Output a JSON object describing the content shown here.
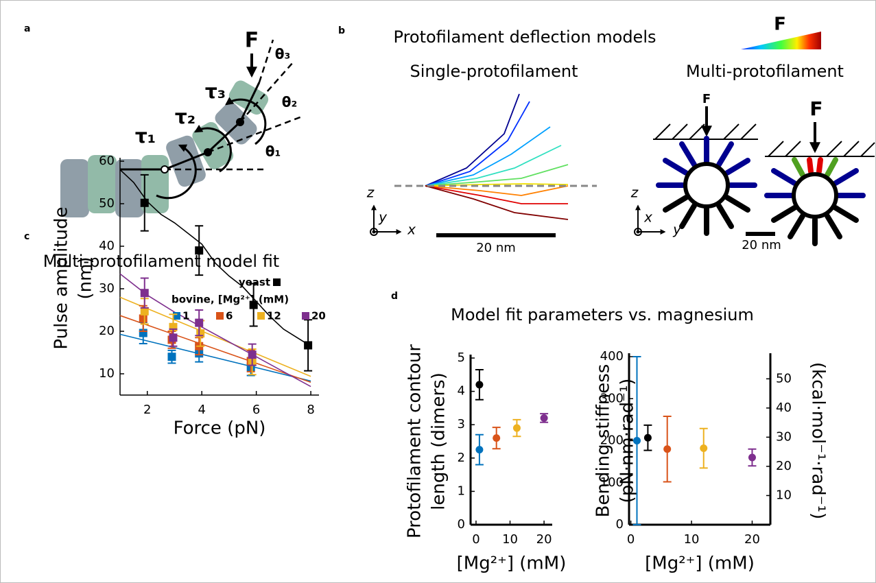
{
  "panel_labels": [
    "a",
    "b",
    "c",
    "d"
  ],
  "panel_a": {
    "force": "F",
    "angles": [
      "θ₃",
      "θ₂",
      "θ₁"
    ],
    "torques": [
      "τ₁",
      "τ₂",
      "τ₃"
    ]
  },
  "panel_b": {
    "title": "Protofilament deflection models",
    "colorbar_label": "F",
    "single_title": "Single-protofilament",
    "multi_title": "Multi-protofilament",
    "single_axes": [
      "z",
      "y",
      "x"
    ],
    "multi_axes": [
      "z",
      "x",
      "y"
    ],
    "single_scale": "20 nm",
    "multi_scale": "20 nm",
    "multi_forces": [
      "F",
      "F"
    ]
  },
  "panel_d_title": "Model fit parameters vs. magnesium",
  "chart_data": [
    {
      "type": "scatter",
      "title": "Multi-protofilament model fit",
      "x_label": "Force (pN)",
      "y_label": [
        "Pulse amplitude",
        "(nm)"
      ],
      "legend_title": "bovine, [Mg²⁺] (mM)",
      "xlim": [
        1,
        8.3
      ],
      "xticks": [
        2,
        4,
        6,
        8
      ],
      "ylim": [
        5,
        60
      ],
      "yticks": [
        10,
        20,
        30,
        40,
        50,
        60
      ],
      "series": [
        {
          "name": "yeast",
          "color": "#000000",
          "x": [
            1.9,
            3.9,
            5.9,
            7.9
          ],
          "values": [
            50.2,
            39,
            26.2,
            16.7
          ],
          "errors": [
            6.6,
            5.8,
            5,
            6
          ],
          "fit_x": [
            1,
            1.5,
            2,
            2.5,
            3,
            3.5,
            4,
            4.5,
            5,
            5.5,
            6,
            6.5,
            7,
            7.5,
            8
          ],
          "fit_values": [
            58,
            55,
            50.5,
            47.5,
            45.5,
            43,
            40.5,
            36,
            33,
            30.5,
            27,
            23.5,
            20.5,
            18.5,
            16.5
          ]
        },
        {
          "name": "1",
          "color": "#0072bd",
          "x": [
            1.85,
            2.9,
            3.9,
            5.8
          ],
          "values": [
            19.6,
            14,
            14.8,
            11.6
          ],
          "errors": [
            2.5,
            1.5,
            2,
            2
          ],
          "fit_x": [
            1,
            8
          ],
          "fit_values": [
            19.3,
            8.3
          ]
        },
        {
          "name": "6",
          "color": "#d95319",
          "x": [
            1.85,
            2.9,
            3.9,
            5.8
          ],
          "values": [
            23,
            18,
            16.5,
            13
          ],
          "errors": [
            3,
            2,
            2,
            2.5
          ],
          "fit_x": [
            1,
            8
          ],
          "fit_values": [
            23.7,
            8
          ]
        },
        {
          "name": "12",
          "color": "#edb120",
          "x": [
            1.9,
            2.95,
            3.95,
            5.85
          ],
          "values": [
            24.7,
            21,
            19.5,
            12.8
          ],
          "errors": [
            3,
            3,
            3,
            3
          ],
          "fit_x": [
            1,
            8
          ],
          "fit_values": [
            28,
            9.4
          ]
        },
        {
          "name": "20",
          "color": "#7e2f8e",
          "x": [
            1.9,
            2.95,
            3.9,
            5.85
          ],
          "values": [
            29,
            18.5,
            22,
            14.5
          ],
          "errors": [
            3.5,
            2,
            3,
            2.5
          ],
          "fit_x": [
            1,
            2,
            3,
            4,
            5,
            6,
            7,
            8
          ],
          "fit_values": [
            33.5,
            28.5,
            24.5,
            21,
            17.5,
            14,
            10.5,
            7
          ]
        }
      ]
    },
    {
      "type": "errorbar",
      "x_label": "[Mg²⁺] (mM)",
      "y_label": [
        "Protofilament contour",
        "length (dimers)"
      ],
      "xlim": [
        -1.6,
        22.4
      ],
      "xticks": [
        0,
        10,
        20
      ],
      "ylim": [
        0,
        5
      ],
      "yticks": [
        0,
        1,
        2,
        3,
        4,
        5
      ],
      "points": {
        "x": [
          1,
          1,
          6,
          12,
          20
        ],
        "values": [
          4.2,
          2.25,
          2.6,
          2.9,
          3.2
        ],
        "errors": [
          0.45,
          0.45,
          0.32,
          0.25,
          0.13
        ],
        "colors": [
          "#000000",
          "#0072bd",
          "#d95319",
          "#edb120",
          "#7e2f8e"
        ]
      }
    },
    {
      "type": "errorbar",
      "x_label": "[Mg²⁺] (mM)",
      "y_label": [
        "Bending stiffness",
        "(pN·nm·rad⁻¹)"
      ],
      "y2_label": "(kcal·mol⁻¹·rad⁻¹)",
      "xlim": [
        -0.3,
        23
      ],
      "xticks": [
        0,
        10,
        20
      ],
      "ylim": [
        0,
        400
      ],
      "yticks": [
        0,
        100,
        200,
        300,
        400
      ],
      "y2lim": [
        0,
        57.6
      ],
      "y2ticks": [
        10,
        20,
        30,
        40,
        50
      ],
      "points": {
        "x": [
          1,
          2.8,
          6,
          12,
          20
        ],
        "values": [
          200,
          207,
          180,
          182,
          160
        ],
        "errors": [
          200,
          30,
          78,
          47,
          20
        ],
        "colors": [
          "#0072bd",
          "#000000",
          "#d95319",
          "#edb120",
          "#7e2f8e"
        ]
      }
    }
  ]
}
